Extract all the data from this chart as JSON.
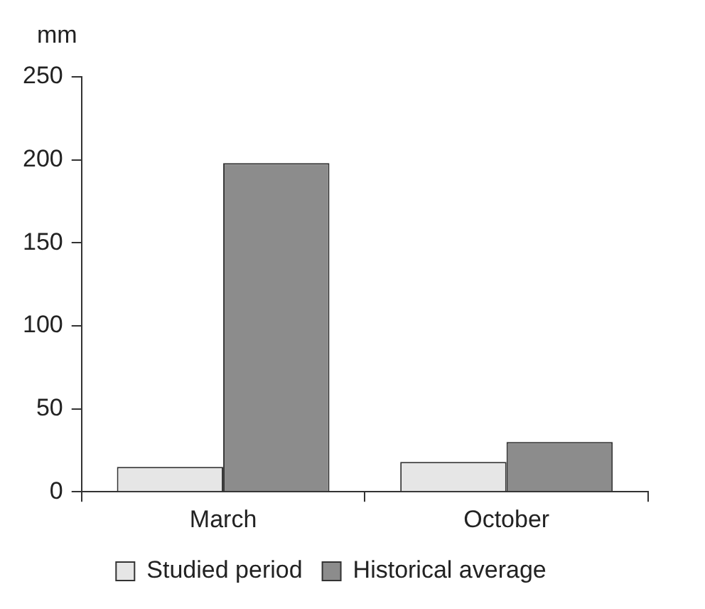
{
  "chart_data": {
    "type": "bar",
    "ylabel": "mm",
    "categories": [
      "March",
      "October"
    ],
    "series": [
      {
        "name": "Studied period",
        "color": "#e6e6e6",
        "values": [
          15,
          18
        ]
      },
      {
        "name": "Historical average",
        "color": "#8c8c8c",
        "values": [
          198,
          30
        ]
      }
    ],
    "ylim": [
      0,
      250
    ],
    "yticks": [
      0,
      50,
      100,
      150,
      200,
      250
    ],
    "grid": false,
    "legend": "bottom"
  }
}
